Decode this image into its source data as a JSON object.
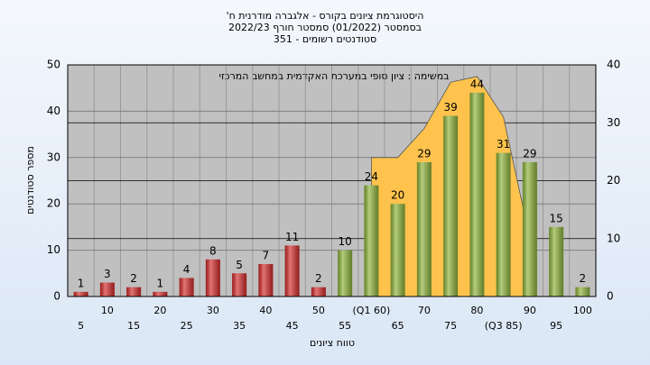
{
  "chart_data": {
    "type": "bar",
    "title": [
      "היסטוגרמת ציונים בקורס - אלגברה מודרנית ח'",
      "בסמסטר  (01/2022)  סמסטר חורף 2022/23",
      "סטודנטים רשומים - 351"
    ],
    "annotation": "במשימה : ציון סופי במערכת האקדמית במחשב המרכזי",
    "ylabel": "מספר סטודנטים",
    "xlabel": "טווח ציונים",
    "categories": [
      "5",
      "10",
      "15",
      "20",
      "25",
      "30",
      "35",
      "40",
      "45",
      "50",
      "55",
      "(Q1 60)",
      "65",
      "70",
      "75",
      "80",
      "(Q3 85)",
      "90",
      "95",
      "100"
    ],
    "series": [
      {
        "type": "bar",
        "colors": [
          "#d42a2a",
          "#d42a2a",
          "#d42a2a",
          "#d42a2a",
          "#d42a2a",
          "#d42a2a",
          "#d42a2a",
          "#d42a2a",
          "#d42a2a",
          "#d42a2a",
          "#8db33a",
          "#8db33a",
          "#8db33a",
          "#8db33a",
          "#8db33a",
          "#8db33a",
          "#8db33a",
          "#8db33a",
          "#8db33a",
          "#8db33a"
        ],
        "values": [
          1,
          3,
          2,
          1,
          4,
          8,
          5,
          7,
          11,
          2,
          10,
          24,
          20,
          29,
          39,
          44,
          31,
          29,
          15,
          2
        ]
      },
      {
        "type": "area",
        "axis": "y2",
        "color": "#ffc34d",
        "values": [
          null,
          null,
          null,
          null,
          null,
          null,
          null,
          null,
          null,
          null,
          null,
          24,
          24,
          29,
          37,
          38,
          31,
          10,
          null,
          null
        ]
      }
    ],
    "ylim": [
      0,
      50
    ],
    "yticks": [
      0,
      10,
      20,
      30,
      40,
      50
    ],
    "y2lim": [
      0,
      40
    ],
    "y2ticks": [
      0,
      10,
      20,
      30,
      40
    ],
    "grid": true
  }
}
